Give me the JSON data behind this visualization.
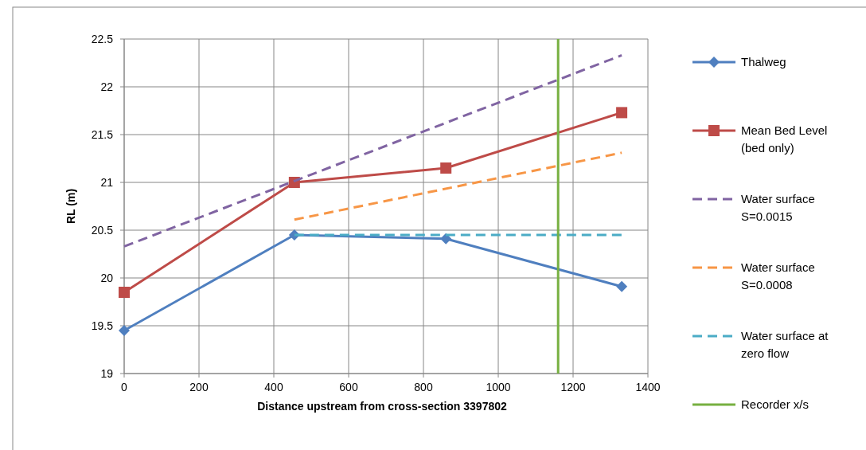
{
  "chart_data": {
    "type": "line",
    "xlabel": "Distance upstream from cross-section 3397802",
    "ylabel": "RL (m)",
    "xlim": [
      0,
      1400
    ],
    "xticks": [
      0,
      200,
      400,
      600,
      800,
      1000,
      1200,
      1400
    ],
    "ylim": [
      19,
      22.5
    ],
    "yticks": [
      19,
      19.5,
      20,
      20.5,
      21,
      21.5,
      22,
      22.5
    ],
    "grid": true,
    "legend": "right",
    "series": [
      {
        "name": "Thalweg",
        "color": "#4f7fbf",
        "marker": "diamond",
        "line_style": "solid",
        "x": [
          0,
          455,
          860,
          1330
        ],
        "values": [
          19.45,
          20.45,
          20.41,
          19.91
        ]
      },
      {
        "name": "Mean Bed Level (bed only)",
        "color": "#be4b48",
        "marker": "square",
        "line_style": "solid",
        "x": [
          0,
          455,
          860,
          1330
        ],
        "values": [
          19.85,
          21.0,
          21.15,
          21.73
        ]
      },
      {
        "name": "Water surface S=0.0015",
        "color": "#8064a2",
        "marker": "none",
        "line_style": "dashed",
        "x": [
          0,
          1330
        ],
        "values": [
          20.33,
          22.33
        ]
      },
      {
        "name": "Water surface S=0.0008",
        "color": "#f79646",
        "marker": "none",
        "line_style": "dashed",
        "x": [
          455,
          1330
        ],
        "values": [
          20.61,
          21.31
        ]
      },
      {
        "name": "Water surface at zero flow",
        "color": "#4bacc6",
        "marker": "none",
        "line_style": "dashed",
        "x": [
          455,
          1330
        ],
        "values": [
          20.45,
          20.45
        ]
      },
      {
        "name": "Recorder x/s",
        "color": "#77b041",
        "marker": "none",
        "line_style": "solid",
        "x": [
          1160,
          1160
        ],
        "values": [
          19,
          22.5
        ]
      }
    ]
  }
}
